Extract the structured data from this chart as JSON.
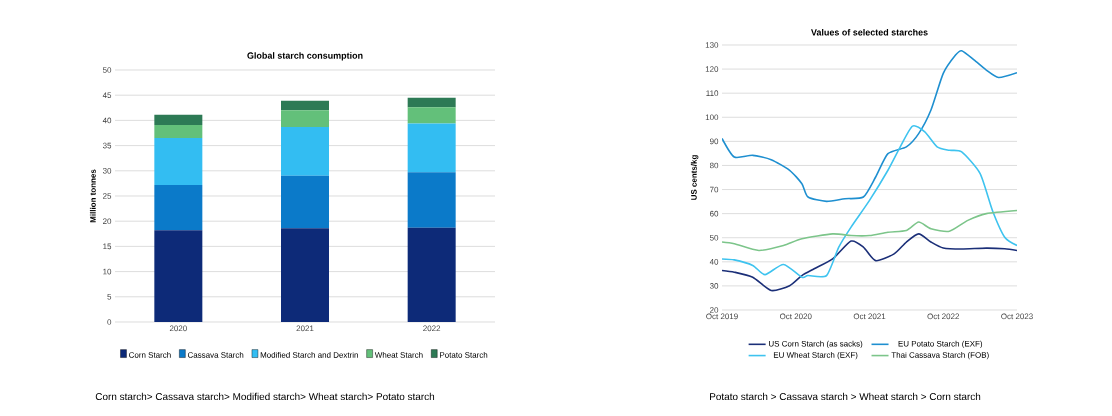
{
  "chart_data": [
    {
      "type": "bar",
      "title": "Global starch consumption",
      "ylabel": "Million tonnes",
      "categories": [
        "2020",
        "2021",
        "2022"
      ],
      "stacked": true,
      "ylim": [
        0,
        50
      ],
      "yticks": [
        0,
        5,
        10,
        15,
        20,
        25,
        30,
        35,
        40,
        45,
        50
      ],
      "grid": "y",
      "legend": "bottom",
      "series": [
        {
          "name": "Corn Starch",
          "color": "#0d2a78",
          "values": [
            18.2,
            18.6,
            18.7
          ]
        },
        {
          "name": "Cassava Starch",
          "color": "#0b7ac9",
          "values": [
            9.0,
            10.4,
            11.0
          ]
        },
        {
          "name": "Modified Starch and Dextrin",
          "color": "#33bdf2",
          "values": [
            9.3,
            9.7,
            9.7
          ]
        },
        {
          "name": "Wheat Starch",
          "color": "#63c07a",
          "values": [
            2.6,
            3.3,
            3.2
          ]
        },
        {
          "name": "Potato Starch",
          "color": "#2d7a55",
          "values": [
            2.0,
            1.9,
            1.9
          ]
        }
      ],
      "annotations": [
        "Corn starch> Cassava starch> Modified starch> Wheat starch> Potato starch"
      ]
    },
    {
      "type": "line",
      "title": "Values of selected starches",
      "ylabel": "US cents/kg",
      "xlim": [
        "2019-10",
        "2023-10"
      ],
      "ylim": [
        20,
        130
      ],
      "yticks": [
        20,
        30,
        40,
        50,
        60,
        70,
        80,
        90,
        100,
        110,
        120,
        130
      ],
      "xticks": [
        {
          "value": "2019-10",
          "label": "Oct 2019"
        },
        {
          "value": "2020-10",
          "label": "Oct 2020"
        },
        {
          "value": "2021-10",
          "label": "Oct 2021"
        },
        {
          "value": "2022-10",
          "label": "Oct 2022"
        },
        {
          "value": "2023-10",
          "label": "Oct 2023"
        }
      ],
      "grid": "y",
      "legend": "bottom",
      "marker": "none",
      "line_style": "solid",
      "series": [
        {
          "name": "US Corn Starch (as sacks)",
          "color": "#1b2f78",
          "x": [
            "2019-10",
            "2019-12",
            "2020-03",
            "2020-06",
            "2020-09",
            "2020-11",
            "2021-01",
            "2021-04",
            "2021-07",
            "2021-09",
            "2021-11",
            "2022-02",
            "2022-04",
            "2022-06",
            "2022-08",
            "2022-10",
            "2023-01",
            "2023-05",
            "2023-08",
            "2023-10"
          ],
          "values": [
            36.4,
            35.7,
            33.6,
            28.1,
            30.1,
            34.3,
            37.1,
            41.2,
            48.6,
            46.1,
            40.5,
            43.3,
            48.2,
            51.6,
            48.2,
            45.7,
            45.3,
            45.7,
            45.4,
            44.7
          ]
        },
        {
          "name": "EU Potato Starch (EXF)",
          "color": "#1e8fd0",
          "x": [
            "2019-10",
            "2019-12",
            "2020-03",
            "2020-06",
            "2020-09",
            "2020-11",
            "2020-12",
            "2021-03",
            "2021-06",
            "2021-09",
            "2021-11",
            "2022-01",
            "2022-04",
            "2022-06",
            "2022-08",
            "2022-10",
            "2022-12",
            "2023-01",
            "2023-03",
            "2023-05",
            "2023-07",
            "2023-10"
          ],
          "values": [
            91.2,
            83.5,
            84.2,
            82.4,
            78.0,
            72.4,
            66.9,
            65.1,
            66.2,
            66.9,
            75.2,
            84.9,
            87.7,
            93.2,
            103.0,
            118.2,
            125.8,
            127.6,
            123.8,
            119.6,
            116.5,
            118.5
          ]
        },
        {
          "name": "EU Wheat Starch (EXF)",
          "color": "#3ec3ef",
          "x": [
            "2019-10",
            "2019-12",
            "2020-03",
            "2020-05",
            "2020-08",
            "2020-11",
            "2020-12",
            "2021-03",
            "2021-05",
            "2021-07",
            "2021-10",
            "2022-01",
            "2022-03",
            "2022-05",
            "2022-07",
            "2022-09",
            "2022-11",
            "2023-01",
            "2023-04",
            "2023-06",
            "2023-08",
            "2023-10"
          ],
          "values": [
            41.2,
            40.8,
            38.5,
            34.7,
            38.9,
            33.6,
            34.3,
            34.3,
            46.1,
            54.4,
            65.5,
            78.0,
            87.7,
            96.3,
            93.9,
            87.7,
            86.3,
            85.6,
            76.6,
            61.3,
            50.2,
            46.8
          ]
        },
        {
          "name": "Thai Cassava Starch (FOB)",
          "color": "#7cc58a",
          "x": [
            "2019-10",
            "2019-12",
            "2020-04",
            "2020-08",
            "2020-11",
            "2021-04",
            "2021-07",
            "2021-10",
            "2022-01",
            "2022-04",
            "2022-06",
            "2022-08",
            "2022-11",
            "2023-02",
            "2023-05",
            "2023-10"
          ],
          "values": [
            48.2,
            47.5,
            44.7,
            46.8,
            49.6,
            51.6,
            50.9,
            50.9,
            52.3,
            53.0,
            56.5,
            53.7,
            52.7,
            57.2,
            60.0,
            61.3
          ]
        }
      ],
      "annotations": [
        "Potato starch > Cassava starch > Wheat starch > Corn starch"
      ]
    }
  ]
}
